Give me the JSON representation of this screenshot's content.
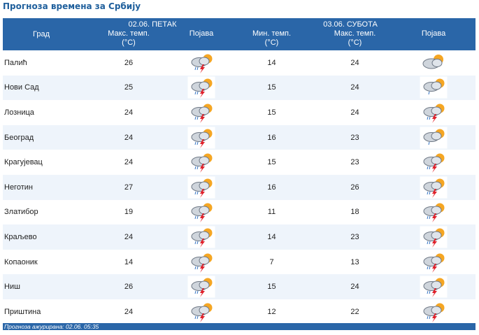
{
  "title": "Прогноза времена за Србију",
  "header": {
    "city_col": "Град",
    "day1": {
      "label": "02.06. ПЕТАК",
      "max_temp": "Макс. темп.",
      "unit": "(°C)",
      "phenomenon": "Појава"
    },
    "day2": {
      "label": "03.06. СУБОТА",
      "min_temp": "Мин. темп.",
      "max_temp": "Макс. темп.",
      "unit": "(°C)",
      "phenomenon": "Појава"
    }
  },
  "rows": [
    {
      "city": "Палић",
      "d1_max": "26",
      "d1_icon": "storm-icon",
      "d2_min": "14",
      "d2_max": "24",
      "d2_icon": "partly-cloudy-icon"
    },
    {
      "city": "Нови Сад",
      "d1_max": "25",
      "d1_icon": "storm-icon",
      "d2_min": "15",
      "d2_max": "24",
      "d2_icon": "shower-icon"
    },
    {
      "city": "Лозница",
      "d1_max": "24",
      "d1_icon": "storm-icon",
      "d2_min": "15",
      "d2_max": "24",
      "d2_icon": "storm-icon"
    },
    {
      "city": "Београд",
      "d1_max": "24",
      "d1_icon": "storm-icon",
      "d2_min": "16",
      "d2_max": "23",
      "d2_icon": "shower-icon"
    },
    {
      "city": "Крагујевац",
      "d1_max": "24",
      "d1_icon": "storm-icon",
      "d2_min": "15",
      "d2_max": "23",
      "d2_icon": "storm-icon"
    },
    {
      "city": "Неготин",
      "d1_max": "27",
      "d1_icon": "storm-icon",
      "d2_min": "16",
      "d2_max": "26",
      "d2_icon": "storm-icon"
    },
    {
      "city": "Златибор",
      "d1_max": "19",
      "d1_icon": "storm-icon",
      "d2_min": "11",
      "d2_max": "18",
      "d2_icon": "storm-icon"
    },
    {
      "city": "Краљево",
      "d1_max": "24",
      "d1_icon": "storm-icon",
      "d2_min": "14",
      "d2_max": "23",
      "d2_icon": "storm-icon"
    },
    {
      "city": "Копаоник",
      "d1_max": "14",
      "d1_icon": "storm-icon",
      "d2_min": "7",
      "d2_max": "13",
      "d2_icon": "storm-icon"
    },
    {
      "city": "Ниш",
      "d1_max": "26",
      "d1_icon": "storm-icon",
      "d2_min": "15",
      "d2_max": "24",
      "d2_icon": "storm-icon"
    },
    {
      "city": "Приштина",
      "d1_max": "24",
      "d1_icon": "storm-icon",
      "d2_min": "12",
      "d2_max": "22",
      "d2_icon": "storm-icon"
    }
  ],
  "footer": "Прогноза ажурирана:  02.06.  05:35"
}
